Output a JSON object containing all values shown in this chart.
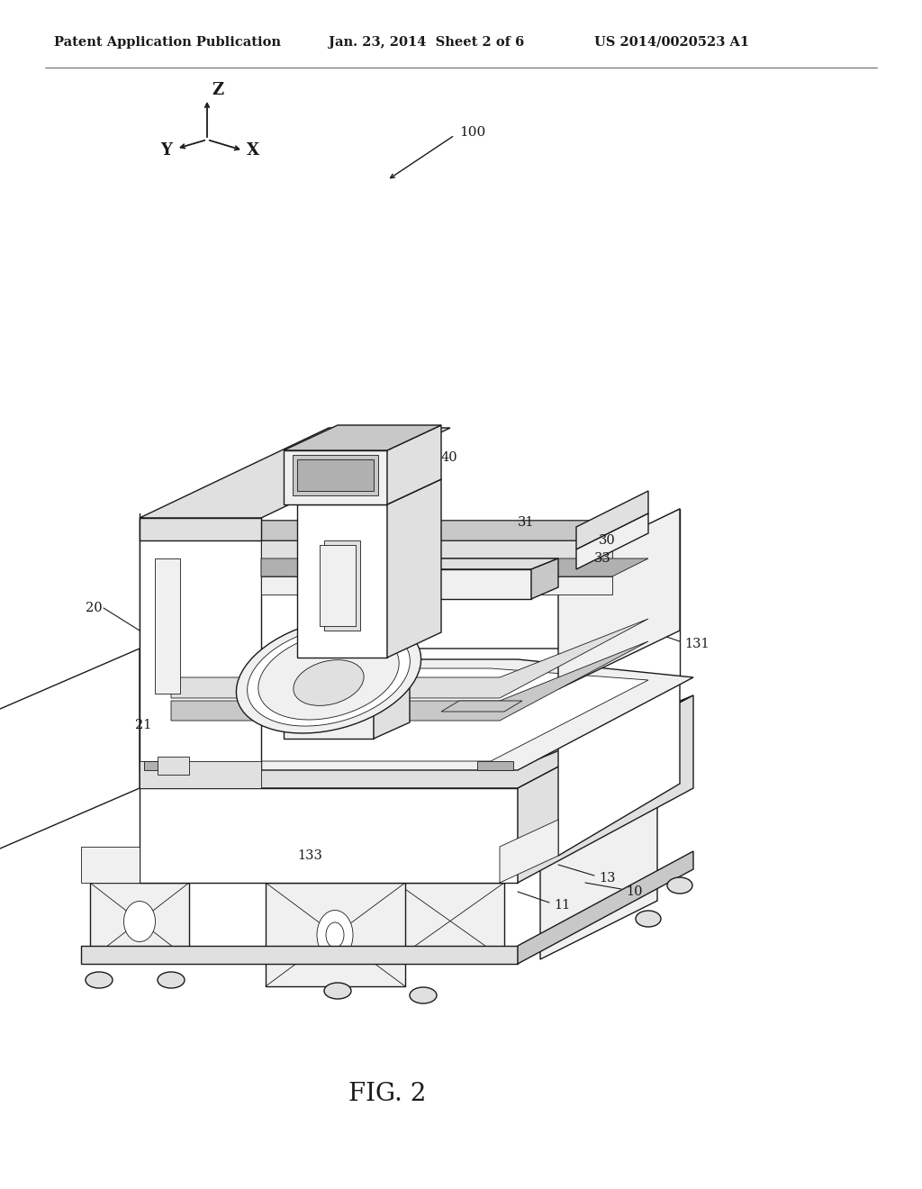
{
  "background_color": "#ffffff",
  "line_color": "#1a1a1a",
  "header_left": "Patent Application Publication",
  "header_center": "Jan. 23, 2014  Sheet 2 of 6",
  "header_right": "US 2014/0020523 A1",
  "figure_label": "FIG. 2",
  "label_fontsize": 10.5,
  "header_fontsize": 10.5,
  "fig_label_fontsize": 20,
  "axis_label_fontsize": 12,
  "lw_main": 1.0,
  "lw_thin": 0.6,
  "lw_thick": 1.4,
  "fill_white": "#ffffff",
  "fill_light": "#f0f0f0",
  "fill_mid": "#e0e0e0",
  "fill_dark": "#c8c8c8",
  "fill_darker": "#b0b0b0"
}
